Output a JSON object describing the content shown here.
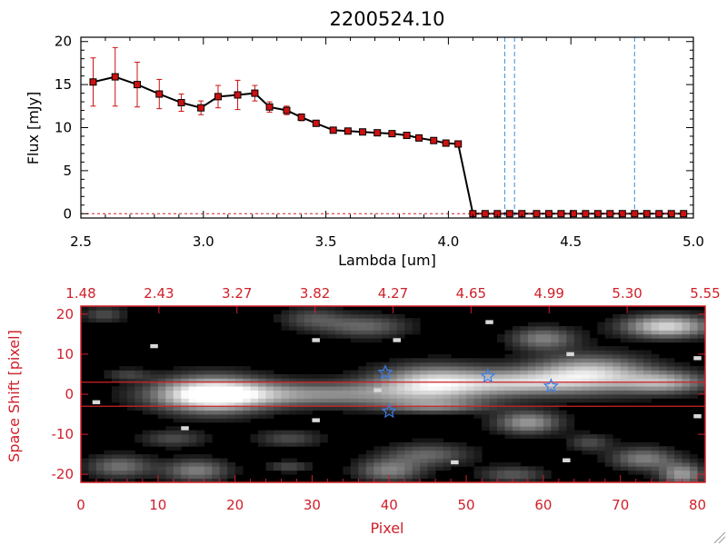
{
  "title": "2200524.10",
  "colors": {
    "axis_black": "#000000",
    "axis_red": "#d0202a",
    "marker": "#cc1111",
    "errorbar": "#cc1111",
    "vline": "#3a8fd8",
    "star": "#3a7de8",
    "band_line": "#d0202a"
  },
  "chart_data": [
    {
      "type": "line",
      "title": "2200524.10",
      "xlabel": "Lambda [um]",
      "ylabel": "Flux [mJy]",
      "xlim": [
        2.5,
        5.0
      ],
      "ylim": [
        -0.5,
        20.5
      ],
      "x_ticks": [
        "2.5",
        "3.0",
        "3.5",
        "4.0",
        "4.5",
        "5.0"
      ],
      "y_ticks": [
        "0",
        "5",
        "10",
        "15",
        "20"
      ],
      "grid": false,
      "series": [
        {
          "x": [
            2.55,
            2.64,
            2.73,
            2.82,
            2.91,
            2.99,
            3.06,
            3.14,
            3.21,
            3.27,
            3.34,
            3.4,
            3.46,
            3.53,
            3.59,
            3.65,
            3.71,
            3.77,
            3.83,
            3.88,
            3.94,
            3.99,
            4.04,
            4.1,
            4.15,
            4.2,
            4.25,
            4.3,
            4.36,
            4.41,
            4.46,
            4.51,
            4.56,
            4.61,
            4.66,
            4.71,
            4.76,
            4.81,
            4.86,
            4.91,
            4.96
          ],
          "y": [
            15.3,
            15.9,
            15.0,
            13.9,
            12.9,
            12.3,
            13.6,
            13.8,
            14.0,
            12.4,
            12.0,
            11.2,
            10.5,
            9.7,
            9.6,
            9.5,
            9.4,
            9.3,
            9.1,
            8.8,
            8.5,
            8.2,
            8.1,
            0,
            0,
            0,
            0,
            0,
            0,
            0,
            0,
            0,
            0,
            0,
            0,
            0,
            0,
            0,
            0,
            0,
            0
          ],
          "yerr": [
            2.8,
            3.4,
            2.6,
            1.7,
            1.0,
            0.8,
            1.3,
            1.7,
            0.9,
            0.6,
            0.5,
            0.4,
            0.3,
            0.3,
            0.2,
            0.2,
            0.2,
            0.2,
            0.2,
            0.2,
            0.2,
            0.2,
            0.2,
            0,
            0,
            0,
            0,
            0,
            0,
            0,
            0,
            0,
            0,
            0,
            0,
            0,
            0,
            0,
            0,
            0,
            0
          ]
        }
      ],
      "vlines": [
        4.23,
        4.27,
        4.76
      ]
    },
    {
      "type": "heatmap",
      "xlabel": "Pixel",
      "ylabel": "Space Shift [pixel]",
      "xlim": [
        0,
        81
      ],
      "ylim": [
        -22,
        22
      ],
      "x_ticks": [
        "0",
        "10",
        "20",
        "30",
        "40",
        "50",
        "60",
        "70",
        "80"
      ],
      "y_ticks": [
        "-20",
        "-10",
        "0",
        "10",
        "20"
      ],
      "top_ticks": [
        "1.48",
        "2.43",
        "3.27",
        "3.82",
        "4.27",
        "4.65",
        "4.99",
        "5.30",
        "5.55"
      ],
      "band_lines": [
        3,
        -3
      ],
      "stars": [
        {
          "x": 39.5,
          "y": 5.4
        },
        {
          "x": 40.0,
          "y": -4.3
        },
        {
          "x": 52.8,
          "y": 4.5
        },
        {
          "x": 61.0,
          "y": 2.0
        }
      ],
      "blobs": [
        {
          "x": 17.0,
          "y": 0.0,
          "sx": 5.0,
          "sy": 3.2,
          "v": 1.0
        },
        {
          "x": 30.0,
          "y": 0.0,
          "sx": 12.0,
          "sy": 2.2,
          "v": 0.55
        },
        {
          "x": 46.0,
          "y": 3.0,
          "sx": 5.5,
          "sy": 3.0,
          "v": 0.85
        },
        {
          "x": 57.0,
          "y": 3.0,
          "sx": 5.0,
          "sy": 2.2,
          "v": 0.55
        },
        {
          "x": 66.0,
          "y": 5.0,
          "sx": 5.5,
          "sy": 3.2,
          "v": 0.85
        },
        {
          "x": 76.0,
          "y": 17.0,
          "sx": 4.0,
          "sy": 2.0,
          "v": 0.85
        },
        {
          "x": 76.0,
          "y": 3.0,
          "sx": 4.0,
          "sy": 2.0,
          "v": 0.6
        },
        {
          "x": 58.0,
          "y": -7.0,
          "sx": 3.0,
          "sy": 2.0,
          "v": 0.6
        },
        {
          "x": 60.0,
          "y": 14.0,
          "sx": 3.0,
          "sy": 2.0,
          "v": 0.5
        },
        {
          "x": 37.0,
          "y": 17.0,
          "sx": 4.0,
          "sy": 2.0,
          "v": 0.4
        },
        {
          "x": 46.0,
          "y": -3.0,
          "sx": 5.0,
          "sy": 1.2,
          "v": 0.4
        },
        {
          "x": 12.0,
          "y": -11.0,
          "sx": 3.0,
          "sy": 1.5,
          "v": 0.3
        },
        {
          "x": 27.0,
          "y": -11.0,
          "sx": 3.0,
          "sy": 1.5,
          "v": 0.3
        },
        {
          "x": 45.0,
          "y": -15.0,
          "sx": 4.0,
          "sy": 2.0,
          "v": 0.4
        },
        {
          "x": 5.0,
          "y": -18.0,
          "sx": 3.0,
          "sy": 2.0,
          "v": 0.45
        },
        {
          "x": 15.0,
          "y": -19.0,
          "sx": 3.0,
          "sy": 2.0,
          "v": 0.5
        },
        {
          "x": 40.0,
          "y": -19.0,
          "sx": 3.0,
          "sy": 2.0,
          "v": 0.5
        },
        {
          "x": 73.0,
          "y": -16.0,
          "sx": 3.0,
          "sy": 2.0,
          "v": 0.5
        },
        {
          "x": 78.0,
          "y": -20.0,
          "sx": 2.0,
          "sy": 2.0,
          "v": 0.6
        },
        {
          "x": 30.0,
          "y": 19.0,
          "sx": 3.0,
          "sy": 2.0,
          "v": 0.3
        },
        {
          "x": 3.0,
          "y": 20.0,
          "sx": 2.0,
          "sy": 1.5,
          "v": 0.3
        },
        {
          "x": 6.0,
          "y": 5.0,
          "sx": 2.0,
          "sy": 1.0,
          "v": 0.25
        },
        {
          "x": 27.0,
          "y": -18.0,
          "sx": 2.0,
          "sy": 1.0,
          "v": 0.3
        },
        {
          "x": 56.0,
          "y": -20.0,
          "sx": 3.0,
          "sy": 1.5,
          "v": 0.35
        },
        {
          "x": 66.0,
          "y": -12.0,
          "sx": 2.0,
          "sy": 1.5,
          "v": 0.3
        }
      ],
      "dots": [
        {
          "x": 9.5,
          "y": 12.0
        },
        {
          "x": 30.5,
          "y": 13.5
        },
        {
          "x": 41.0,
          "y": 13.5
        },
        {
          "x": 53.0,
          "y": 18.0
        },
        {
          "x": 63.5,
          "y": 10.0
        },
        {
          "x": 30.5,
          "y": -6.5
        },
        {
          "x": 13.5,
          "y": -8.5
        },
        {
          "x": 38.5,
          "y": 1.0
        },
        {
          "x": 80.0,
          "y": 9.0
        },
        {
          "x": 80.0,
          "y": -5.5
        },
        {
          "x": 2.0,
          "y": -2.0
        },
        {
          "x": 63.0,
          "y": -16.5
        },
        {
          "x": 48.5,
          "y": -17.0
        }
      ]
    }
  ]
}
